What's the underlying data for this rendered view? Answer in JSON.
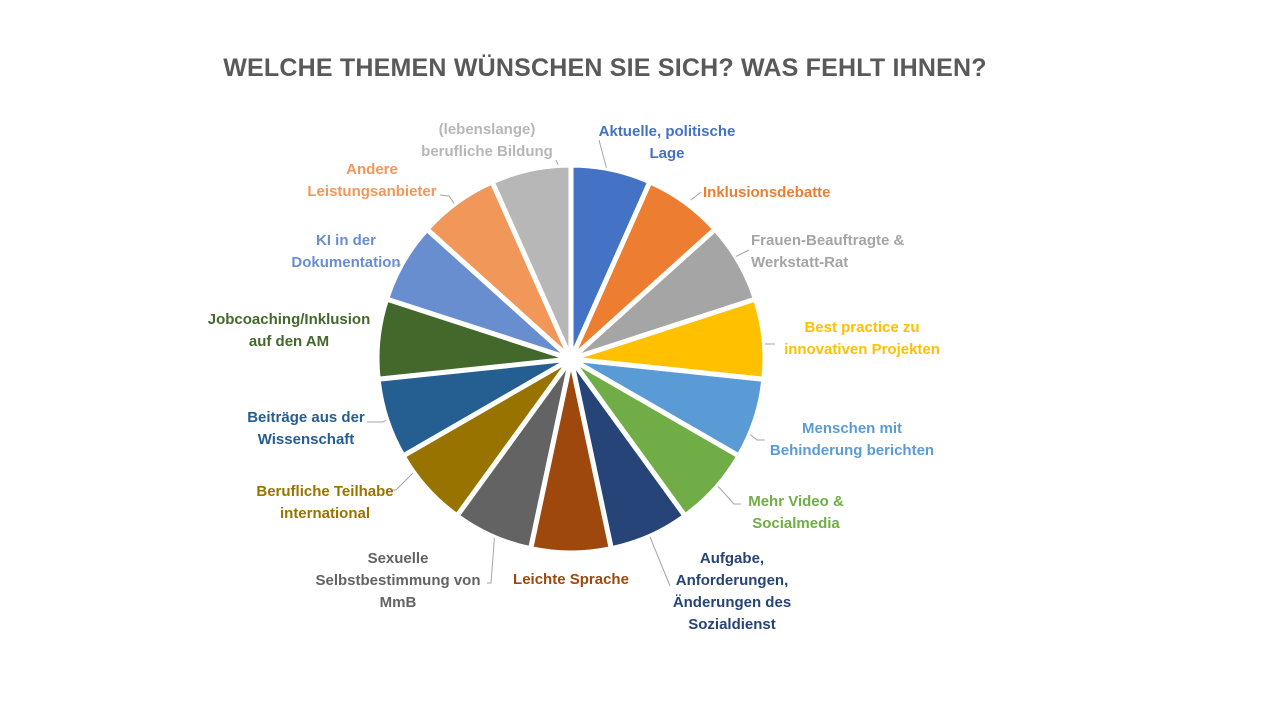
{
  "chart_data": {
    "type": "pie",
    "title": "WELCHE THEMEN WÜNSCHEN SIE SICH? WAS FEHLT IHNEN?",
    "slices": [
      {
        "label": [
          "Aktuelle, politische",
          "Lage"
        ],
        "value": 1,
        "color": "#4472C4"
      },
      {
        "label": [
          "Inklusionsdebatte"
        ],
        "value": 1,
        "color": "#ED7D31"
      },
      {
        "label": [
          "Frauen-Beauftragte &",
          "Werkstatt-Rat"
        ],
        "value": 1,
        "color": "#A5A5A5"
      },
      {
        "label": [
          "Best practice zu",
          "innovativen Projekten"
        ],
        "value": 1,
        "color": "#FFC000"
      },
      {
        "label": [
          "Menschen mit",
          "Behinderung berichten"
        ],
        "value": 1,
        "color": "#5B9BD5"
      },
      {
        "label": [
          "Mehr Video &",
          "Socialmedia"
        ],
        "value": 1,
        "color": "#70AD47"
      },
      {
        "label": [
          "Aufgabe,",
          "Anforderungen,",
          "Änderungen des",
          "Sozialdienst"
        ],
        "value": 1,
        "color": "#264478"
      },
      {
        "label": [
          "Leichte Sprache"
        ],
        "value": 1,
        "color": "#9E480E"
      },
      {
        "label": [
          "Sexuelle",
          "Selbstbestimmung von",
          "MmB"
        ],
        "value": 1,
        "color": "#636363"
      },
      {
        "label": [
          "Berufliche Teilhabe",
          "international"
        ],
        "value": 1,
        "color": "#997300"
      },
      {
        "label": [
          "Beiträge aus der",
          "Wissenschaft"
        ],
        "value": 1,
        "color": "#255E91"
      },
      {
        "label": [
          "Jobcoaching/Inklusion",
          "auf den AM"
        ],
        "value": 1,
        "color": "#43682B"
      },
      {
        "label": [
          "KI in der",
          "Dokumentation"
        ],
        "value": 1,
        "color": "#698ED0"
      },
      {
        "label": [
          "Andere",
          "Leistungsanbieter"
        ],
        "value": 1,
        "color": "#F1975A"
      },
      {
        "label": [
          "(lebenslange)",
          "berufliche Bildung"
        ],
        "value": 1,
        "color": "#B7B7B7"
      }
    ]
  }
}
